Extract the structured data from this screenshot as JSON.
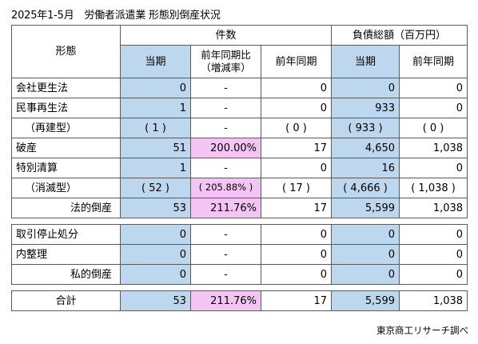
{
  "title": "2025年1-5月　労働者派遣業 形態別倒産状況",
  "source": "東京商工リサーチ調べ",
  "header": {
    "form": "形態",
    "count_group": "件数",
    "debt_group": "負債総額（百万円）",
    "current": "当期",
    "yoy_line1": "前年同期比",
    "yoy_line2": "（増減率）",
    "prev": "前年同期",
    "debt_current": "当期",
    "debt_prev": "前年同期"
  },
  "rows": [
    {
      "label": "会社更生法",
      "count": "0",
      "yoy": "-",
      "prev": "0",
      "debt": "0",
      "debt_prev": "0"
    },
    {
      "label": "民事再生法",
      "count": "1",
      "yoy": "-",
      "prev": "0",
      "debt": "933",
      "debt_prev": "0"
    },
    {
      "label": "（再建型）",
      "count": "( 1 )",
      "yoy": "-",
      "prev": "( 0 )",
      "debt": "( 933 )",
      "debt_prev": "( 0 )"
    },
    {
      "label": "破産",
      "count": "51",
      "yoy": "200.00%",
      "prev": "17",
      "debt": "4,650",
      "debt_prev": "1,038"
    },
    {
      "label": "特別清算",
      "count": "1",
      "yoy": "-",
      "prev": "0",
      "debt": "16",
      "debt_prev": "0"
    },
    {
      "label": "（消滅型）",
      "count": "( 52 )",
      "yoy": "( 205.88% )",
      "prev": "( 17 )",
      "debt": "( 4,666 )",
      "debt_prev": "( 1,038 )"
    },
    {
      "label": "法的倒産",
      "count": "53",
      "yoy": "211.76%",
      "prev": "17",
      "debt": "5,599",
      "debt_prev": "1,038"
    },
    {
      "label": "取引停止処分",
      "count": "0",
      "yoy": "-",
      "prev": "0",
      "debt": "0",
      "debt_prev": "0"
    },
    {
      "label": "内整理",
      "count": "0",
      "yoy": "-",
      "prev": "0",
      "debt": "0",
      "debt_prev": "0"
    },
    {
      "label": "私的倒産",
      "count": "0",
      "yoy": "-",
      "prev": "0",
      "debt": "0",
      "debt_prev": "0"
    },
    {
      "label": "合計",
      "count": "53",
      "yoy": "211.76%",
      "prev": "17",
      "debt": "5,599",
      "debt_prev": "1,038"
    }
  ],
  "colors": {
    "current_period_fill": "#bdd7ee",
    "yoy_highlight_fill": "#f4c4f4",
    "border": "#5a5a5a"
  }
}
